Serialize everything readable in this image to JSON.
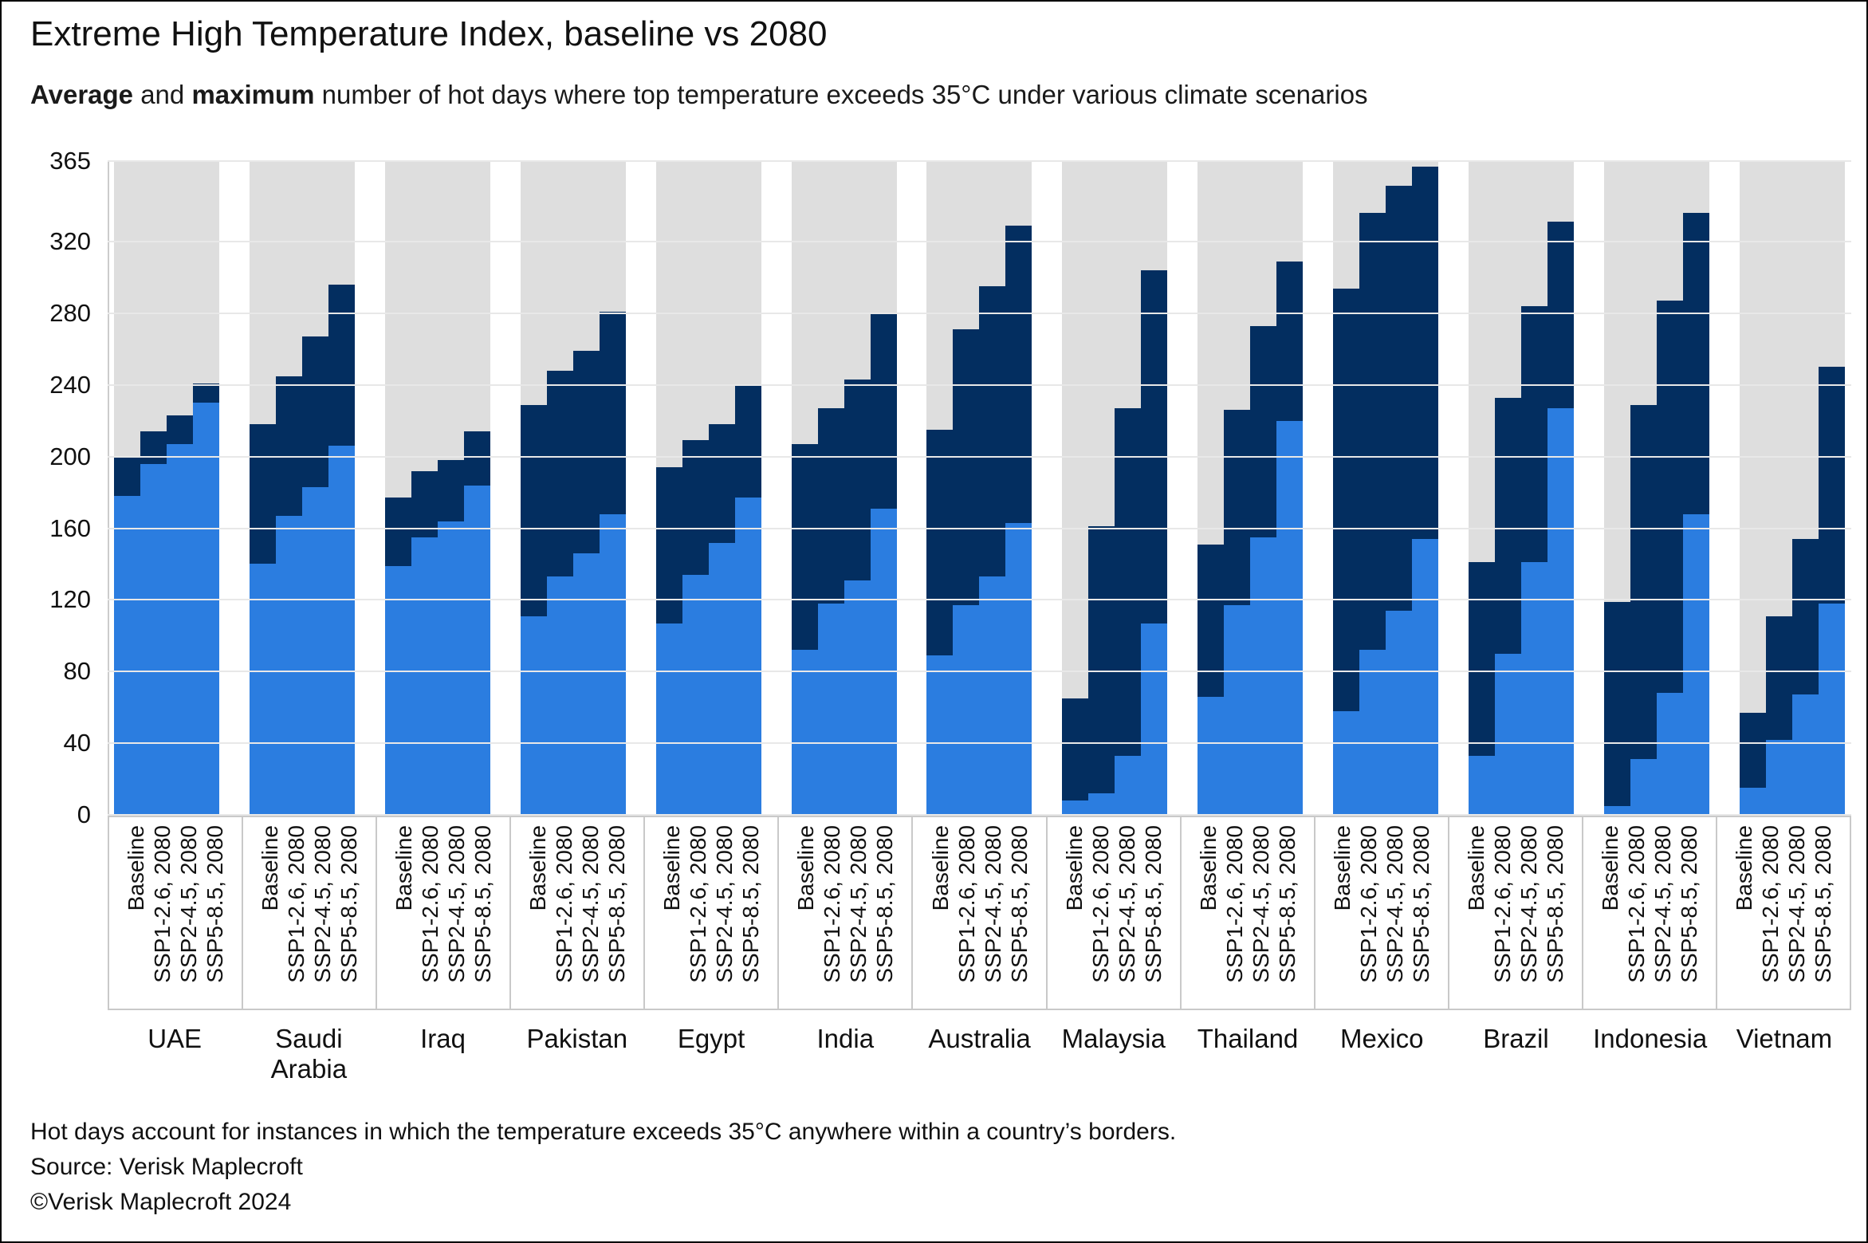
{
  "title": "Extreme High Temperature Index, baseline vs 2080",
  "subtitle": {
    "average_word": "Average",
    "joiner": " and ",
    "maximum_word": "maximum",
    "rest": " number of hot days where top temperature exceeds 35°C under various climate scenarios"
  },
  "footnotes": {
    "note": "Hot days account for instances in which the temperature exceeds 35°C anywhere within a country’s borders.",
    "source": "Source: Verisk Maplecroft",
    "copyright": "©Verisk Maplecroft 2024"
  },
  "colors": {
    "average_blue": "#2b7de0",
    "maximum_navy": "#032e60",
    "column_gray": "#dedede",
    "gridline": "#e8e8e8",
    "band_border": "#c9c9c9",
    "text": "#111111"
  },
  "chart_data": {
    "type": "bar",
    "stacked": true,
    "legend_position": "in-subtitle",
    "grid": true,
    "ylim": [
      0,
      365
    ],
    "yticks": [
      365,
      320,
      280,
      240,
      200,
      160,
      120,
      80,
      40,
      0
    ],
    "ylabel": "",
    "xlabel": "",
    "scenarios": [
      "Baseline",
      "SSP1-2.6, 2080",
      "SSP2-4.5, 2080",
      "SSP5-8.5, 2080"
    ],
    "series_names": [
      "average hot days",
      "maximum hot days"
    ],
    "countries": [
      {
        "name": "UAE",
        "avg": [
          178,
          196,
          207,
          230
        ],
        "max": [
          200,
          214,
          223,
          241
        ]
      },
      {
        "name": "Saudi Arabia",
        "avg": [
          140,
          167,
          183,
          206
        ],
        "max": [
          218,
          245,
          267,
          296
        ]
      },
      {
        "name": "Iraq",
        "avg": [
          139,
          155,
          164,
          184
        ],
        "max": [
          177,
          192,
          198,
          214
        ]
      },
      {
        "name": "Pakistan",
        "avg": [
          111,
          133,
          146,
          168
        ],
        "max": [
          229,
          248,
          259,
          281
        ]
      },
      {
        "name": "Egypt",
        "avg": [
          107,
          134,
          152,
          177
        ],
        "max": [
          194,
          209,
          218,
          240
        ]
      },
      {
        "name": "India",
        "avg": [
          92,
          118,
          131,
          171
        ],
        "max": [
          207,
          227,
          243,
          280
        ]
      },
      {
        "name": "Australia",
        "avg": [
          89,
          117,
          133,
          163
        ],
        "max": [
          215,
          271,
          295,
          329
        ]
      },
      {
        "name": "Malaysia",
        "avg": [
          8,
          12,
          33,
          107
        ],
        "max": [
          65,
          161,
          227,
          304
        ]
      },
      {
        "name": "Thailand",
        "avg": [
          66,
          117,
          155,
          220
        ],
        "max": [
          151,
          226,
          273,
          309
        ]
      },
      {
        "name": "Mexico",
        "avg": [
          58,
          92,
          114,
          154
        ],
        "max": [
          294,
          336,
          351,
          362
        ]
      },
      {
        "name": "Brazil",
        "avg": [
          33,
          90,
          141,
          227
        ],
        "max": [
          141,
          233,
          284,
          331
        ]
      },
      {
        "name": "Indonesia",
        "avg": [
          5,
          31,
          68,
          168
        ],
        "max": [
          119,
          229,
          287,
          336
        ]
      },
      {
        "name": "Vietnam",
        "avg": [
          15,
          42,
          67,
          118
        ],
        "max": [
          57,
          111,
          154,
          250
        ]
      }
    ]
  }
}
